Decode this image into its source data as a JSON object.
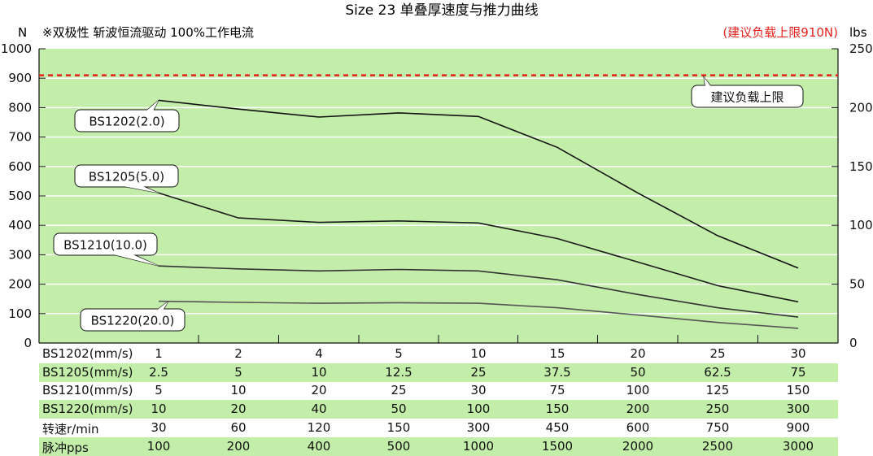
{
  "chart_data": {
    "type": "line",
    "title": "Size 23 单叠厚速度与推力曲线",
    "subtitle": "※双极性 斩波恒流驱动 100%工作电流",
    "ylabel_left": "N",
    "ylabel_right": "lbs",
    "ylim": [
      0,
      1000
    ],
    "ylim_right": [
      0,
      250
    ],
    "yticks_left": [
      "0",
      "100",
      "200",
      "300",
      "400",
      "500",
      "600",
      "700",
      "800",
      "900",
      "1000"
    ],
    "yticks_right": [
      "0",
      "50",
      "100",
      "150",
      "200",
      "250"
    ],
    "x_categories": [
      "1",
      "2",
      "4",
      "5",
      "10",
      "15",
      "20",
      "25",
      "30"
    ],
    "limit": {
      "value": 910,
      "note": "(建议负载上限910N)",
      "label": "建议负载上限",
      "color": "#e8201c"
    },
    "plot_background": "#c3eeaa",
    "series": [
      {
        "name": "BS1202(2.0)",
        "values": [
          825,
          795,
          768,
          782,
          770,
          665,
          510,
          365,
          255
        ]
      },
      {
        "name": "BS1205(5.0)",
        "values": [
          510,
          425,
          410,
          415,
          408,
          355,
          275,
          195,
          140
        ]
      },
      {
        "name": "BS1210(10.0)",
        "values": [
          262,
          252,
          245,
          250,
          245,
          215,
          165,
          120,
          88
        ]
      },
      {
        "name": "BS1220(20.0)",
        "values": [
          142,
          138,
          135,
          137,
          135,
          120,
          95,
          70,
          50
        ]
      }
    ],
    "table": {
      "rows": [
        {
          "label": "BS1202(mm/s)",
          "values": [
            "1",
            "2",
            "4",
            "5",
            "10",
            "15",
            "20",
            "25",
            "30"
          ]
        },
        {
          "label": "BS1205(mm/s)",
          "values": [
            "2.5",
            "5",
            "10",
            "12.5",
            "25",
            "37.5",
            "50",
            "62.5",
            "75"
          ]
        },
        {
          "label": "BS1210(mm/s)",
          "values": [
            "5",
            "10",
            "20",
            "25",
            "30",
            "75",
            "100",
            "125",
            "150"
          ]
        },
        {
          "label": "BS1220(mm/s)",
          "values": [
            "10",
            "20",
            "40",
            "50",
            "100",
            "150",
            "200",
            "250",
            "300"
          ]
        },
        {
          "label": "转速r/min",
          "values": [
            "30",
            "60",
            "120",
            "150",
            "300",
            "450",
            "600",
            "750",
            "900"
          ]
        },
        {
          "label": "脉冲pps",
          "values": [
            "100",
            "200",
            "400",
            "500",
            "1000",
            "1500",
            "2000",
            "2500",
            "3000"
          ]
        }
      ]
    }
  }
}
